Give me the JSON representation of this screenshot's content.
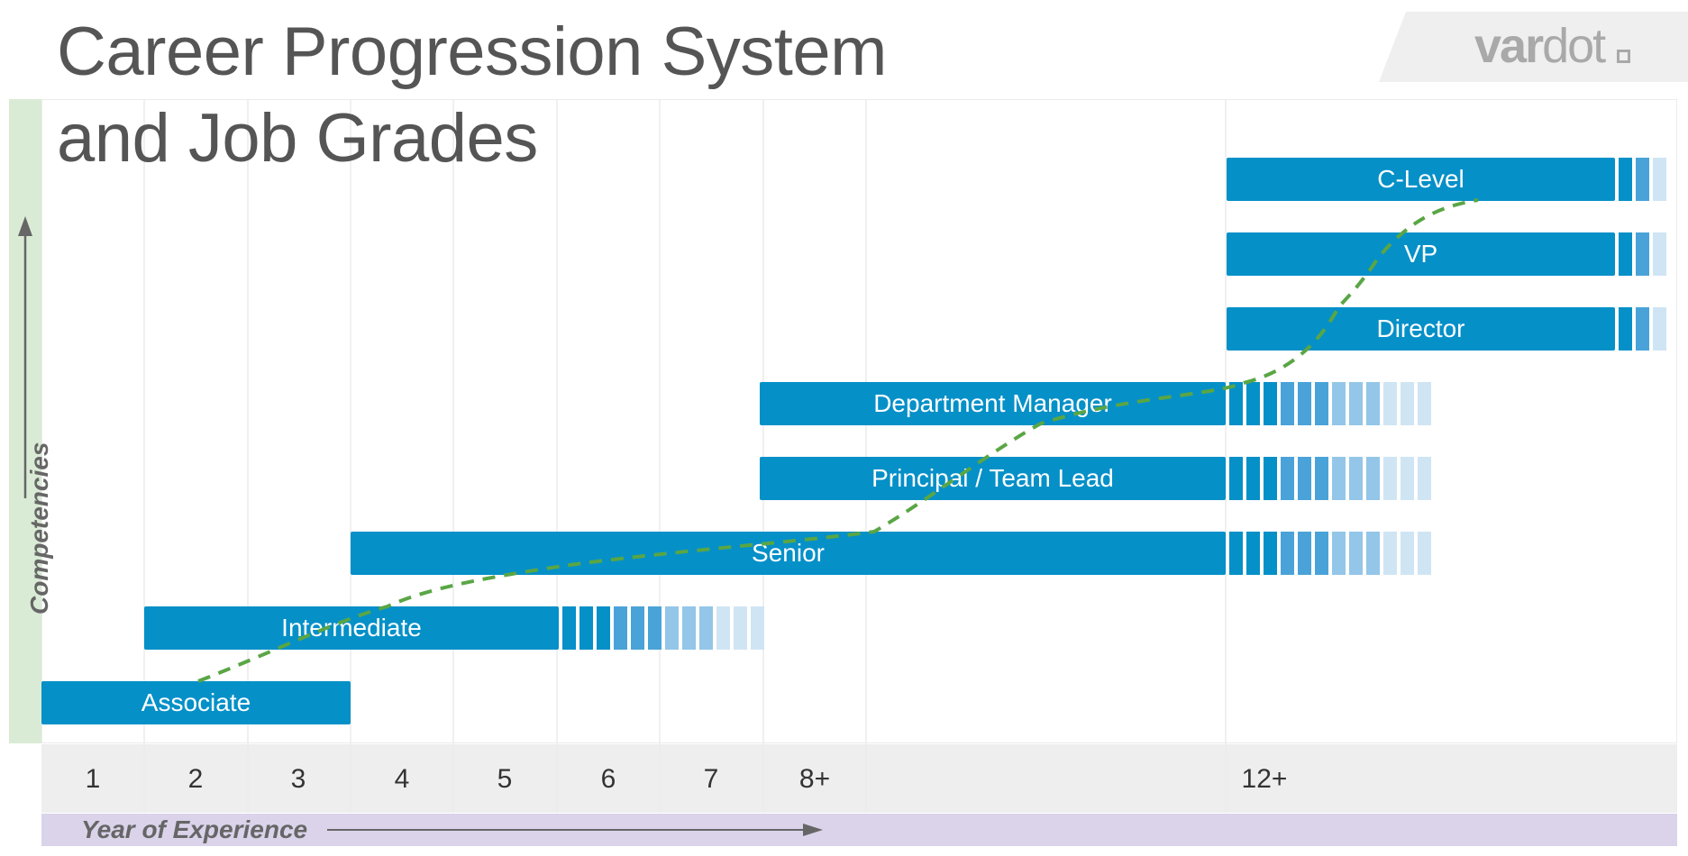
{
  "title": {
    "line1": "Career Progression System",
    "line2": "and Job Grades"
  },
  "logo": {
    "part1": "var",
    "part2": "dot",
    "icon": "square-dot-icon"
  },
  "axes": {
    "y_label": "Competencies",
    "x_label": "Year of Experience",
    "years": [
      "1",
      "2",
      "3",
      "4",
      "5",
      "6",
      "7",
      "8+",
      "12+"
    ]
  },
  "grades": [
    {
      "name": "Associate",
      "from": "1",
      "to": "3"
    },
    {
      "name": "Intermediate",
      "from": "2",
      "to": "5"
    },
    {
      "name": "Senior",
      "from": "4",
      "to": "12+"
    },
    {
      "name": "Principal / Team Lead",
      "from": "8+",
      "to": "12+"
    },
    {
      "name": "Department Manager",
      "from": "8+",
      "to": "12+"
    },
    {
      "name": "Director",
      "from": "12+",
      "to": "12+"
    },
    {
      "name": "VP",
      "from": "12+",
      "to": "12+"
    },
    {
      "name": "C-Level",
      "from": "12+",
      "to": "12+"
    }
  ],
  "colors": {
    "bar": "#0590c8",
    "path": "#5aa645",
    "competency_strip": "#d9ebd5",
    "experience_strip": "#dad3ea",
    "year_row": "#eeeeee"
  }
}
